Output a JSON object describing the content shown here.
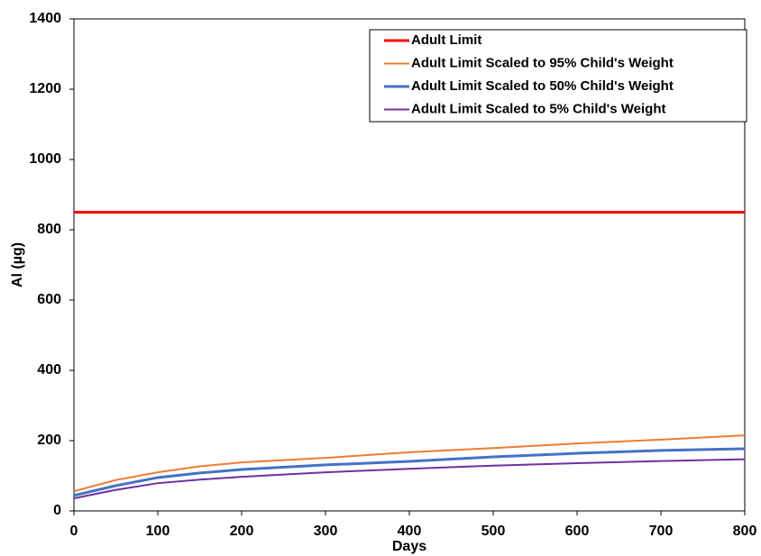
{
  "chart_data": {
    "type": "line",
    "xlabel": "Days",
    "ylabel": "Al (µg)",
    "x": [
      0,
      50,
      100,
      150,
      200,
      300,
      400,
      500,
      600,
      700,
      800
    ],
    "series": [
      {
        "name": "Adult Limit",
        "color": "#ff0000",
        "values": [
          850,
          850,
          850,
          850,
          850,
          850,
          850,
          850,
          850,
          850,
          850
        ]
      },
      {
        "name": "Adult Limit Scaled to 95% Child's Weight",
        "color": "#ed7d31",
        "values": [
          56,
          88,
          110,
          127,
          138,
          151,
          167,
          179,
          192,
          203,
          215
        ]
      },
      {
        "name": "Adult Limit Scaled to 50% Child's Weight",
        "color": "#4472c4",
        "values": [
          44,
          72,
          95,
          108,
          118,
          131,
          141,
          154,
          164,
          172,
          177
        ]
      },
      {
        "name": "Adult Limit Scaled to 5% Child's Weight",
        "color": "#7030a0",
        "values": [
          36,
          60,
          79,
          89,
          97,
          110,
          120,
          129,
          136,
          142,
          147
        ]
      }
    ],
    "xlim": [
      0,
      800
    ],
    "xticks": [
      0,
      100,
      200,
      300,
      400,
      500,
      600,
      700,
      800
    ],
    "ylim": [
      0,
      1400
    ],
    "yticks": [
      0,
      200,
      400,
      600,
      800,
      1000,
      1200,
      1400
    ],
    "grid": false,
    "legend": "upper right"
  }
}
